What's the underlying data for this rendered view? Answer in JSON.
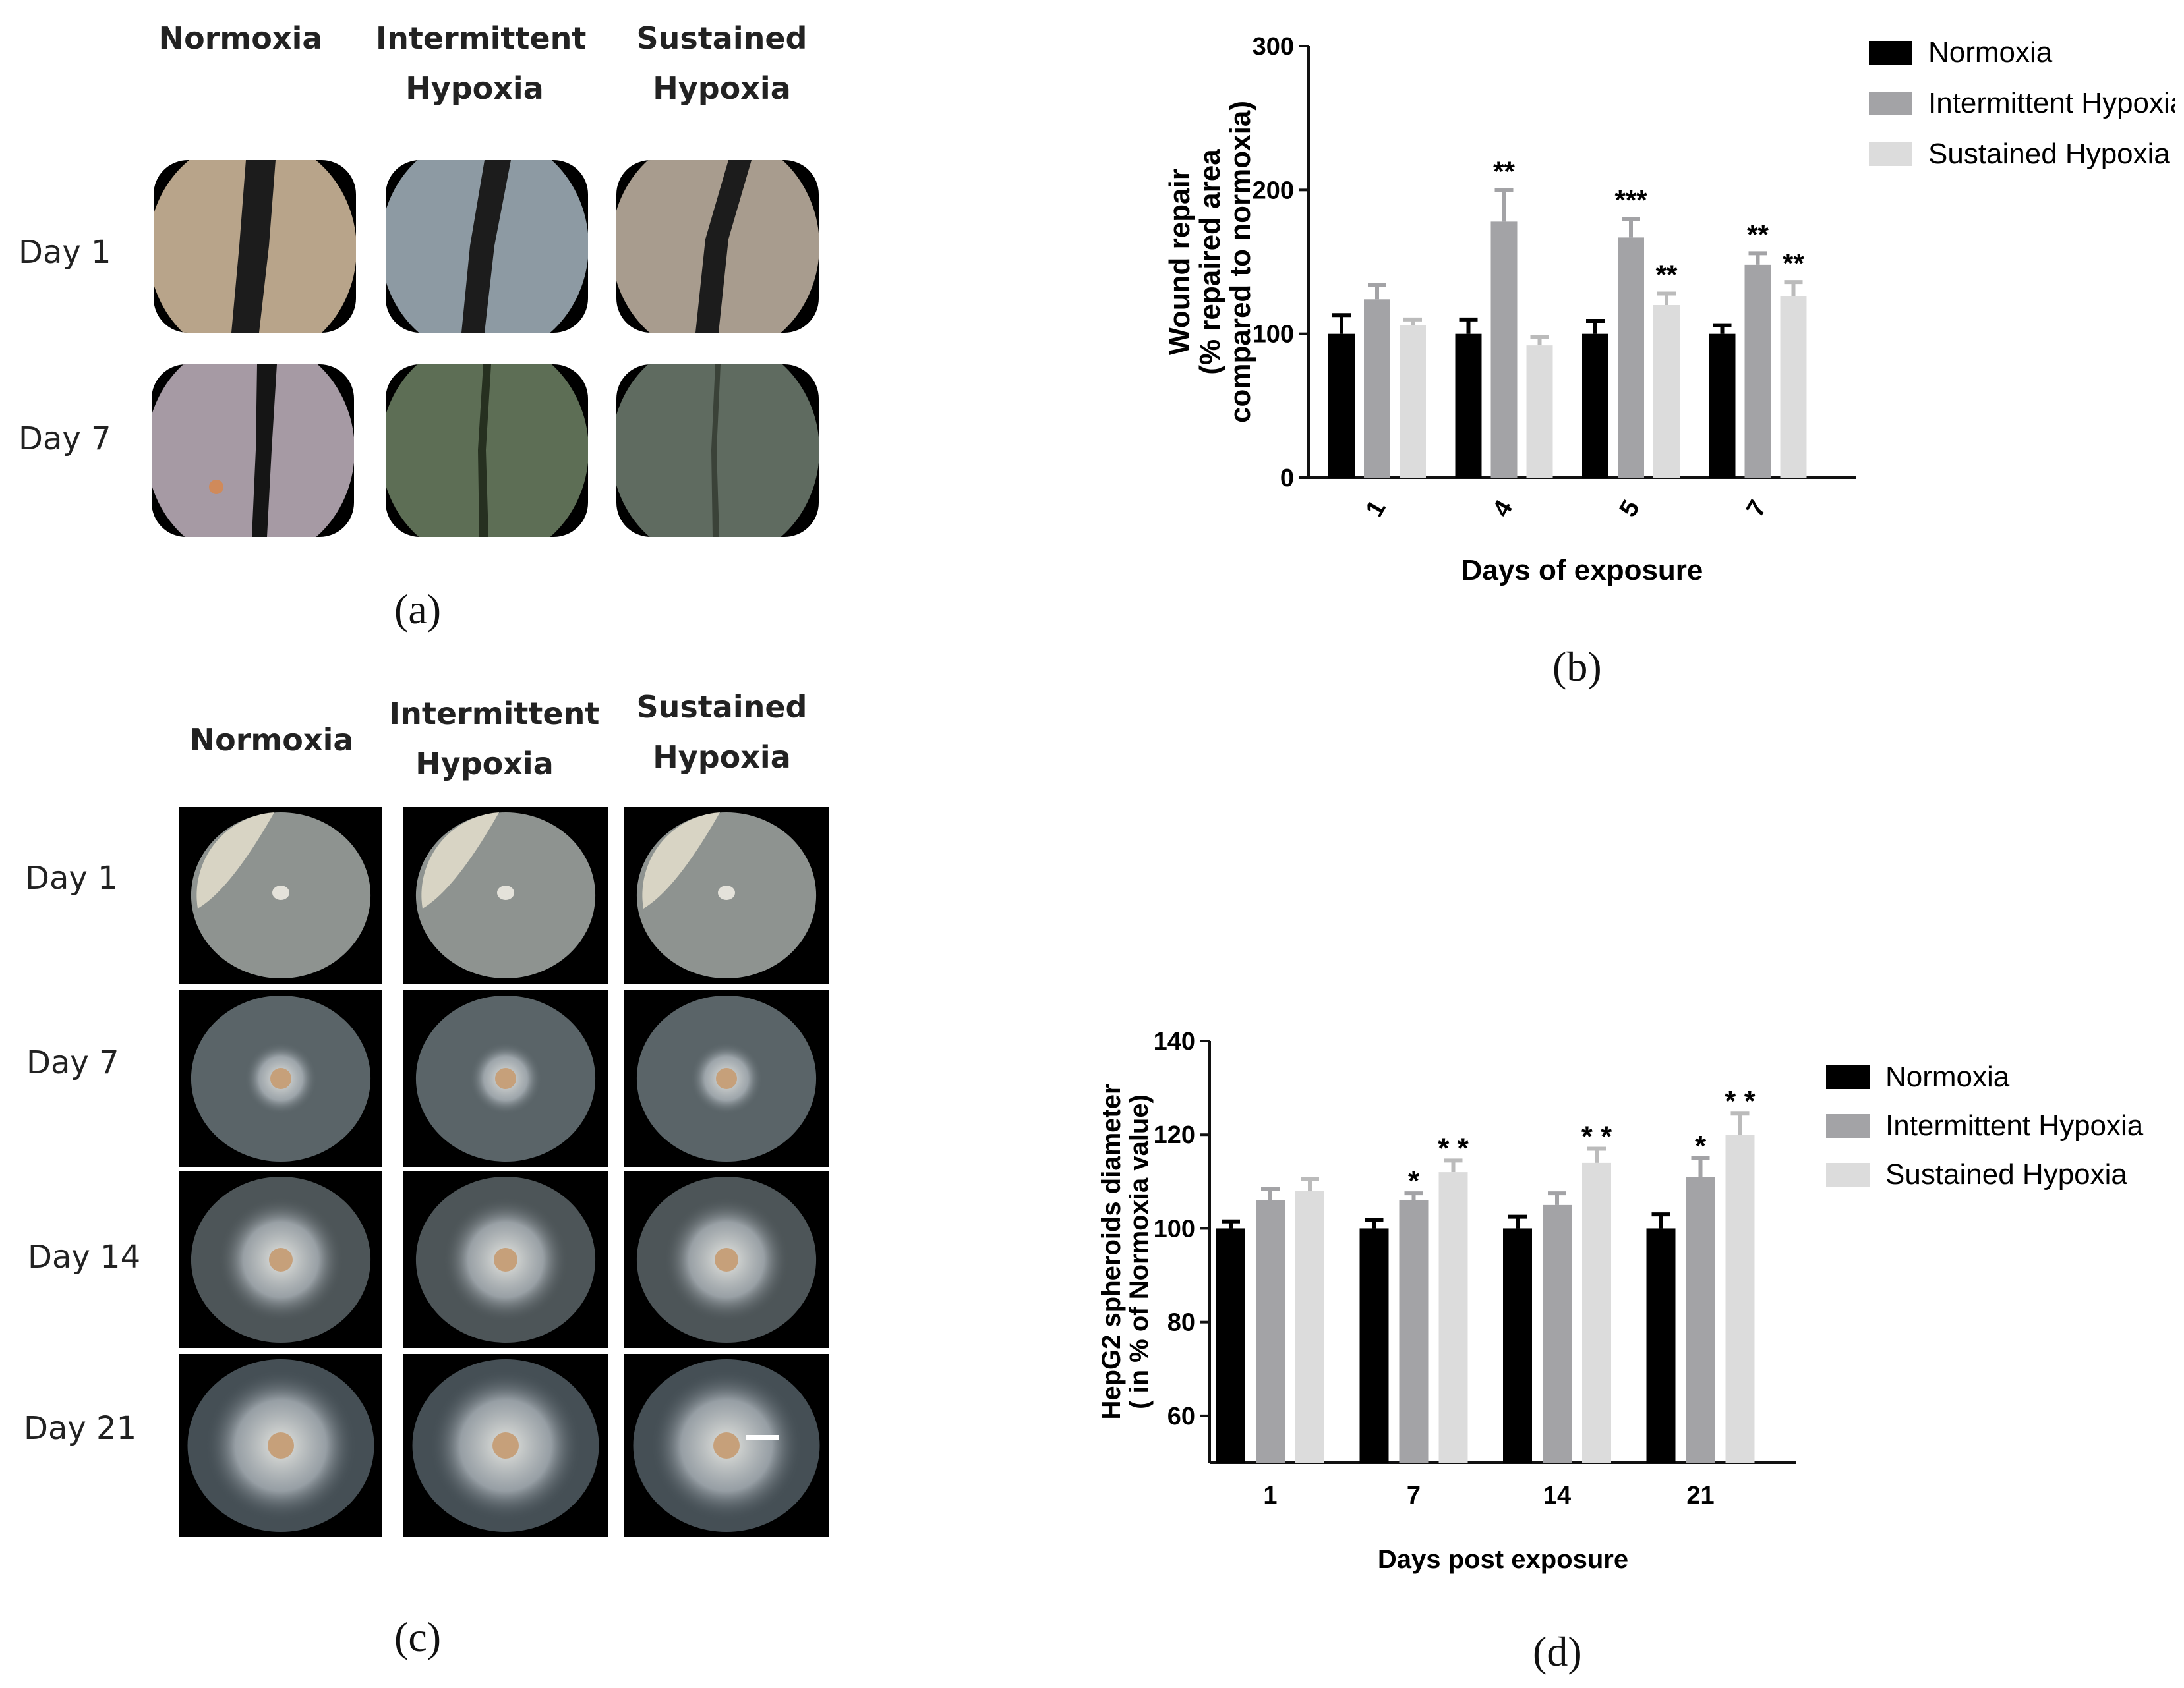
{
  "panel_a": {
    "label": "(a)",
    "columns": [
      "Normoxia",
      "Intermittent Hypoxia",
      "Sustained Hypoxia"
    ],
    "rows": [
      "Day 1",
      "Day 7"
    ]
  },
  "panel_c": {
    "label": "(c)",
    "columns": [
      "Normoxia",
      "Intermittent Hypoxia",
      "Sustained Hypoxia"
    ],
    "rows": [
      "Day 1",
      "Day 7",
      "Day 14",
      "Day 21"
    ]
  },
  "colors": {
    "normoxia": "#000000",
    "intermittent": "#a3a3a6",
    "sustained": "#dcdcdc"
  },
  "chart_data": [
    {
      "id": "b",
      "panel_label": "(b)",
      "type": "bar",
      "xlabel": "Days of exposure",
      "ylabel_lines": [
        "Wound repair",
        "(% repaired area",
        "compared to normoxia)"
      ],
      "categories": [
        "1",
        "4",
        "5",
        "7"
      ],
      "ylim": [
        0,
        300
      ],
      "yticks": [
        "0",
        "100",
        "200",
        "300"
      ],
      "series": [
        {
          "name": "Normoxia",
          "values": [
            100,
            100,
            100,
            100
          ],
          "errors": [
            13,
            10,
            9,
            6
          ],
          "sig": [
            "",
            "",
            "",
            ""
          ]
        },
        {
          "name": "Intermittent Hypoxia",
          "values": [
            124,
            178,
            167,
            148
          ],
          "errors": [
            10,
            22,
            13,
            8
          ],
          "sig": [
            "",
            "**",
            "***",
            "**"
          ]
        },
        {
          "name": "Sustained Hypoxia",
          "values": [
            106,
            92,
            120,
            126
          ],
          "errors": [
            4,
            6,
            8,
            10
          ],
          "sig": [
            "",
            "",
            "**",
            "**"
          ]
        }
      ],
      "legend": "top-right"
    },
    {
      "id": "d",
      "panel_label": "(d)",
      "type": "bar",
      "xlabel": "Days post exposure",
      "ylabel_lines": [
        "HepG2 spheroids diameter",
        "( in % of Normoxia value)"
      ],
      "categories": [
        "1",
        "7",
        "14",
        "21"
      ],
      "ylim": [
        50,
        140
      ],
      "yticks": [
        "60",
        "80",
        "100",
        "120",
        "140"
      ],
      "series": [
        {
          "name": "Normoxia",
          "values": [
            100,
            100,
            100,
            100
          ],
          "errors": [
            1.5,
            1.8,
            2.5,
            3
          ],
          "sig": [
            "",
            "",
            "",
            ""
          ]
        },
        {
          "name": "Intermittent Hypoxia",
          "values": [
            106,
            106,
            105,
            111
          ],
          "errors": [
            2.5,
            1.5,
            2.5,
            4
          ],
          "sig": [
            "",
            "*",
            "",
            "*"
          ]
        },
        {
          "name": "Sustained Hypoxia",
          "values": [
            108,
            112,
            114,
            120
          ],
          "errors": [
            2.5,
            2.5,
            3,
            4.5
          ],
          "sig": [
            "",
            "* *",
            "* *",
            "* *"
          ]
        }
      ],
      "legend": "top-right"
    }
  ]
}
